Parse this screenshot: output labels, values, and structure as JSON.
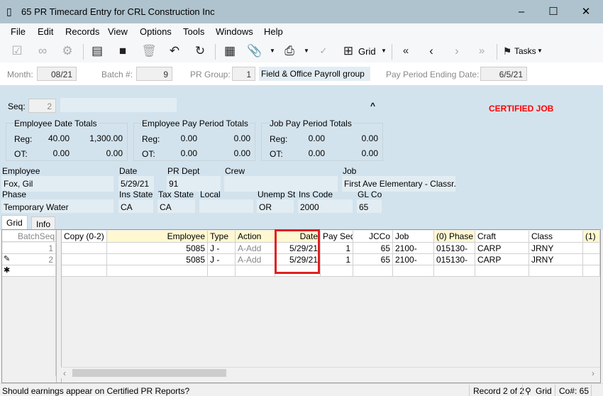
{
  "window": {
    "title": "65 PR Timecard Entry for CRL Construction Inc",
    "minimize": "–",
    "maximize": "☐",
    "close": "✕"
  },
  "menu": [
    "File",
    "Edit",
    "Records",
    "View",
    "Options",
    "Tools",
    "Windows",
    "Help"
  ],
  "toolbar": {
    "grid_label": "Grid",
    "tasks_label": "Tasks"
  },
  "header": {
    "month_label": "Month:",
    "month": "08/21",
    "batch_label": "Batch #:",
    "batch": "9",
    "prgroup_label": "PR Group:",
    "prgroup": "1",
    "prgroup_desc": "Field & Office Payroll group",
    "ppe_label": "Pay Period Ending Date:",
    "ppe": "6/5/21"
  },
  "panel": {
    "seq_label": "Seq:",
    "seq": "2",
    "collapse": "^",
    "certified": "CERTIFIED JOB",
    "totals": [
      {
        "title": "Employee Date Totals",
        "reg_label": "Reg:",
        "ot_label": "OT:",
        "reg": [
          "40.00",
          "1,300.00"
        ],
        "ot": [
          "0.00",
          "0.00"
        ]
      },
      {
        "title": "Employee Pay Period Totals",
        "reg_label": "Reg:",
        "ot_label": "OT:",
        "reg": [
          "0.00",
          "0.00"
        ],
        "ot": [
          "0.00",
          "0.00"
        ]
      },
      {
        "title": "Job Pay Period Totals",
        "reg_label": "Reg:",
        "ot_label": "OT:",
        "reg": [
          "0.00",
          "0.00"
        ],
        "ot": [
          "0.00",
          "0.00"
        ]
      }
    ],
    "fields": {
      "employee_label": "Employee",
      "employee": "Fox, Gil",
      "date_label": "Date",
      "date": "5/29/21",
      "prdept_label": "PR Dept",
      "prdept": "91",
      "crew_label": "Crew",
      "crew": "",
      "job_label": "Job",
      "job": "First Ave Elementary - Classr...",
      "phase_label": "Phase",
      "phase": "Temporary Water",
      "insstate_label": "Ins State",
      "insstate": "CA",
      "taxstate_label": "Tax State",
      "taxstate": "CA",
      "local_label": "Local",
      "local": "",
      "unemp_label": "Unemp St",
      "unemp": "OR",
      "inscode_label": "Ins Code",
      "inscode": "2000",
      "glco_label": "GL Co",
      "glco": "65"
    }
  },
  "tabs": [
    "Grid",
    "Info"
  ],
  "grid": {
    "fixed_header": "BatchSeq",
    "columns": [
      "Copy (0-2)",
      "Employee",
      "Type",
      "Action",
      "Date",
      "Pay Seq",
      "JCCo",
      "Job",
      "(0) Phase",
      "Craft",
      "Class",
      "(1)"
    ],
    "rows": [
      {
        "batchseq": "1",
        "cells": [
          "",
          "5085",
          "J -",
          "A-Add",
          "5/29/21",
          "1",
          "65",
          "2100-",
          "015130-",
          "CARP",
          "JRNY",
          ""
        ]
      },
      {
        "batchseq": "2",
        "cells": [
          "",
          "5085",
          "J -",
          "A-Add",
          "5/29/21",
          "1",
          "65",
          "2100-",
          "015130-",
          "CARP",
          "JRNY",
          ""
        ]
      }
    ]
  },
  "status": {
    "message": "Should earnings appear on Certified PR Reports?",
    "record": "Record 2 of 2",
    "view": "Grid",
    "company": "Co#: 65"
  },
  "colors": {
    "titlebar": "#afc3ce",
    "panel": "#d3e3ed",
    "certified": "#ff0000",
    "highlight": "#e02020"
  }
}
